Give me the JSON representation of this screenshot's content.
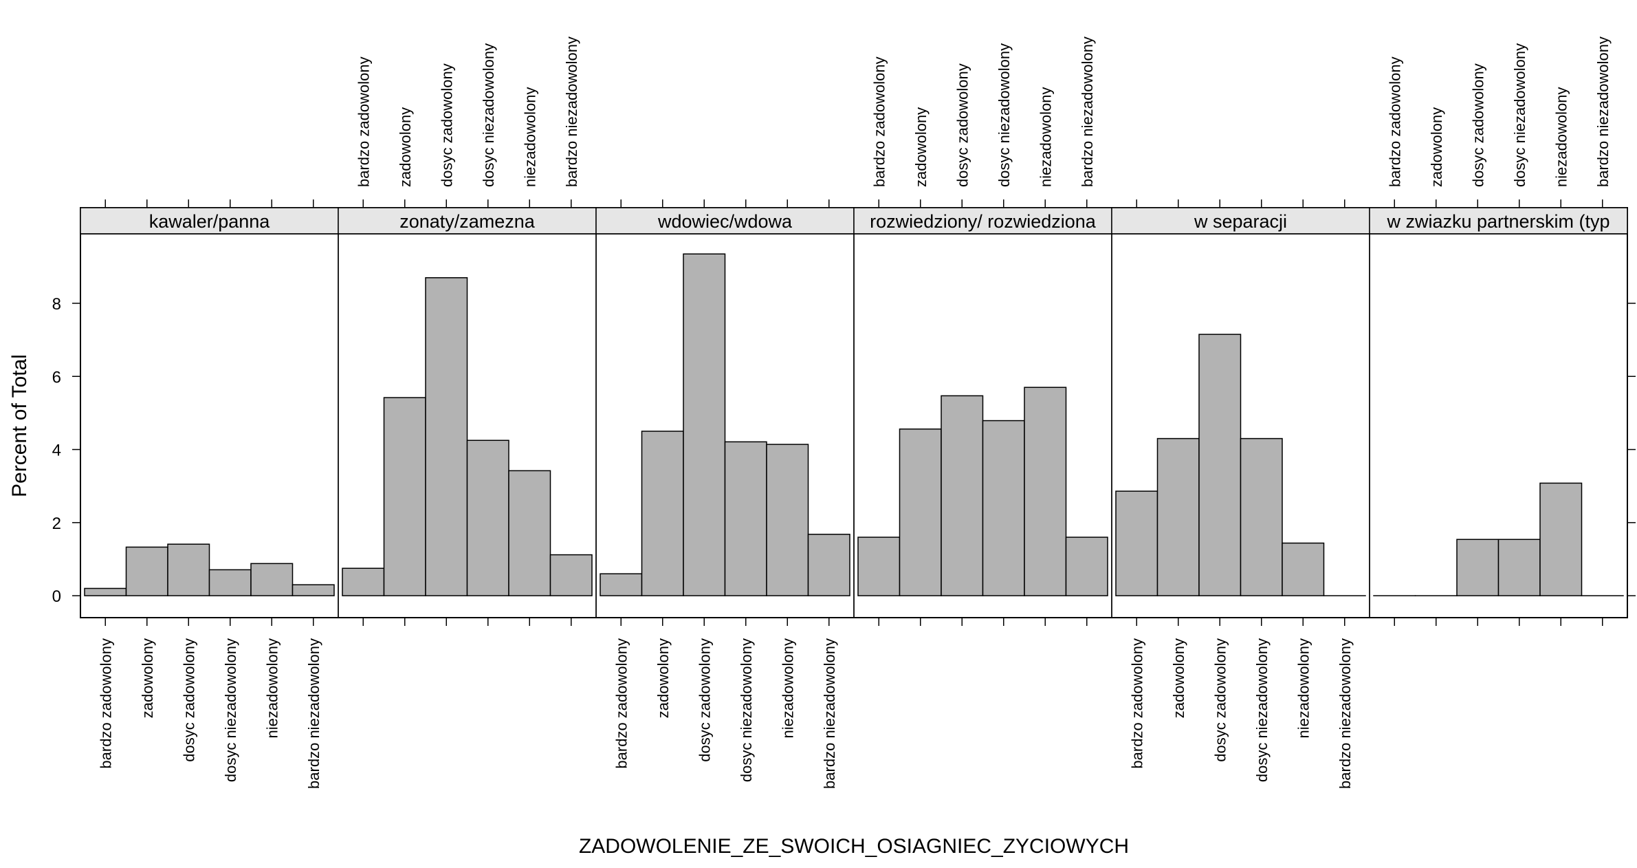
{
  "chart_data": {
    "type": "bar",
    "layout": "lattice-1x6",
    "xlabel": "ZADOWOLENIE_ZE_SWOICH_OSIAGNIEC_ZYCIOWYCH",
    "ylabel": "Percent of Total",
    "categories": [
      "bardzo zadowolony",
      "zadowolony",
      "dosyc zadowolony",
      "dosyc niezadowolony",
      "niezadowolony",
      "bardzo niezadowolony"
    ],
    "ylim": [
      -0.6,
      9.9
    ],
    "y_ticks": [
      0,
      2,
      4,
      6,
      8
    ],
    "grid": false,
    "bar_color": "#b3b3b3",
    "strip_color": "#e6e6e6",
    "panels": [
      {
        "strip": "kawaler/panna",
        "values": [
          0.2,
          1.33,
          1.41,
          0.71,
          0.88,
          0.3
        ]
      },
      {
        "strip": "zonaty/zamezna",
        "values": [
          0.75,
          5.42,
          8.7,
          4.25,
          3.42,
          1.12
        ]
      },
      {
        "strip": "wdowiec/wdowa",
        "values": [
          0.6,
          4.5,
          9.35,
          4.21,
          4.14,
          1.68
        ]
      },
      {
        "strip": "rozwiedziony/ rozwiedziona",
        "values": [
          1.6,
          4.56,
          5.47,
          4.79,
          5.7,
          1.6
        ]
      },
      {
        "strip": "w separacji",
        "values": [
          2.86,
          4.3,
          7.15,
          4.3,
          1.44,
          0
        ]
      },
      {
        "strip": "w zwiazku partnerskim (typ",
        "values": [
          0,
          0,
          1.54,
          1.54,
          3.08,
          0
        ]
      }
    ]
  }
}
